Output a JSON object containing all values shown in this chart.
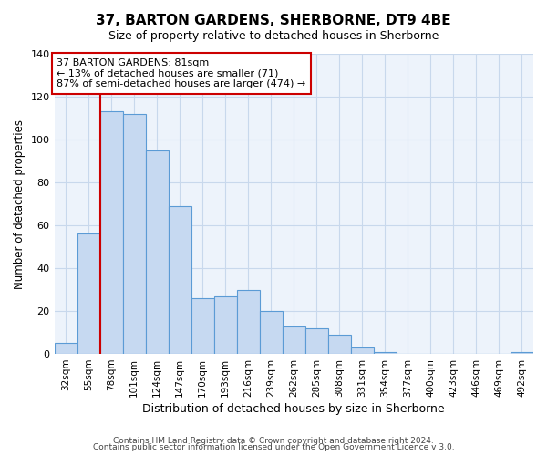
{
  "title": "37, BARTON GARDENS, SHERBORNE, DT9 4BE",
  "subtitle": "Size of property relative to detached houses in Sherborne",
  "xlabel": "Distribution of detached houses by size in Sherborne",
  "ylabel": "Number of detached properties",
  "bar_labels": [
    "32sqm",
    "55sqm",
    "78sqm",
    "101sqm",
    "124sqm",
    "147sqm",
    "170sqm",
    "193sqm",
    "216sqm",
    "239sqm",
    "262sqm",
    "285sqm",
    "308sqm",
    "331sqm",
    "354sqm",
    "377sqm",
    "400sqm",
    "423sqm",
    "446sqm",
    "469sqm",
    "492sqm"
  ],
  "bar_values": [
    5,
    56,
    113,
    112,
    95,
    69,
    26,
    27,
    30,
    20,
    13,
    12,
    9,
    3,
    1,
    0,
    0,
    0,
    0,
    0,
    1
  ],
  "bar_color": "#c6d9f1",
  "bar_edge_color": "#5b9bd5",
  "red_line_bar_index": 2,
  "ylim": [
    0,
    140
  ],
  "yticks": [
    0,
    20,
    40,
    60,
    80,
    100,
    120,
    140
  ],
  "annotation_box_text": "37 BARTON GARDENS: 81sqm\n← 13% of detached houses are smaller (71)\n87% of semi-detached houses are larger (474) →",
  "footer_line1": "Contains HM Land Registry data © Crown copyright and database right 2024.",
  "footer_line2": "Contains public sector information licensed under the Open Government Licence v 3.0.",
  "background_color": "#ffffff",
  "plot_bg_color": "#edf3fb",
  "grid_color": "#c8d8ec",
  "annotation_box_facecolor": "#ffffff",
  "annotation_box_edgecolor": "#cc0000",
  "red_line_color": "#cc0000",
  "title_fontsize": 11,
  "subtitle_fontsize": 9,
  "ylabel_fontsize": 8.5,
  "xlabel_fontsize": 9,
  "tick_fontsize": 8,
  "xtick_fontsize": 7.5,
  "ann_fontsize": 8,
  "footer_fontsize": 6.5
}
